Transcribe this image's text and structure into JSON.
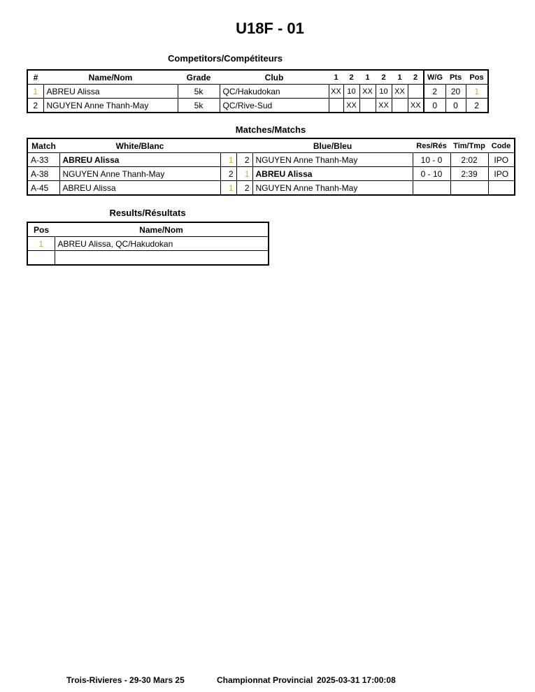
{
  "title": "U18F - 01",
  "competitors": {
    "heading": "Competitors/Compétiteurs",
    "headers": {
      "num": "#",
      "name": "Name/Nom",
      "grade": "Grade",
      "club": "Club",
      "rounds": [
        "1",
        "2",
        "1",
        "2",
        "1",
        "2"
      ],
      "wg": "W/G",
      "pts": "Pts",
      "pos": "Pos"
    },
    "rows": [
      {
        "num": "1",
        "name": "ABREU Alissa",
        "grade": "5k",
        "club": "QC/Hakudokan",
        "scores": [
          "XX",
          "10",
          "XX",
          "10",
          "XX",
          ""
        ],
        "wg": "2",
        "pts": "20",
        "pos": "1"
      },
      {
        "num": "2",
        "name": "NGUYEN Anne Thanh-May",
        "grade": "5k",
        "club": "QC/Rive-Sud",
        "scores": [
          "",
          "XX",
          "",
          "XX",
          "",
          "XX"
        ],
        "wg": "0",
        "pts": "0",
        "pos": "2"
      }
    ]
  },
  "matches": {
    "heading": "Matches/Matchs",
    "headers": {
      "match": "Match",
      "white": "White/Blanc",
      "blue": "Blue/Bleu",
      "res": "Res/Rés",
      "time": "Tim/Tmp",
      "code": "Code"
    },
    "rows": [
      {
        "match": "A-33",
        "white": "ABREU Alissa",
        "wn": "1",
        "bn": "2",
        "blue": "NGUYEN Anne Thanh-May",
        "res": "10 - 0",
        "time": "2:02",
        "code": "IPO",
        "winner": "white"
      },
      {
        "match": "A-38",
        "white": "NGUYEN Anne Thanh-May",
        "wn": "2",
        "bn": "1",
        "blue": "ABREU Alissa",
        "res": "0 - 10",
        "time": "2:39",
        "code": "IPO",
        "winner": "blue"
      },
      {
        "match": "A-45",
        "white": "ABREU Alissa",
        "wn": "1",
        "bn": "2",
        "blue": "NGUYEN Anne Thanh-May",
        "res": "",
        "time": "",
        "code": "",
        "winner": ""
      }
    ]
  },
  "results": {
    "heading": "Results/Résultats",
    "headers": {
      "pos": "Pos",
      "name": "Name/Nom"
    },
    "rows": [
      {
        "pos": "1",
        "name": "ABREU Alissa, QC/Hakudokan"
      },
      {
        "pos": "",
        "name": ""
      }
    ]
  },
  "footer": {
    "location": "Trois-Rivieres - 29-30 Mars 25",
    "event": "Championnat Provincial",
    "datetime": "2025-03-31 17:00:08"
  },
  "colors": {
    "first_place_number": "#d9a441"
  }
}
